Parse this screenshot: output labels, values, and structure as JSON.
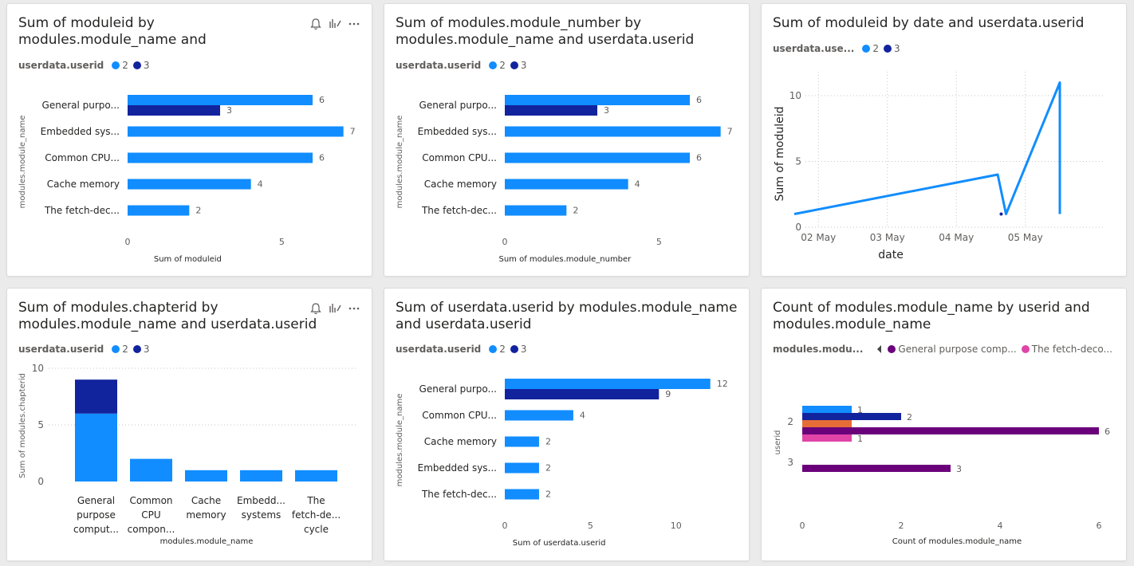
{
  "colors": {
    "series_2": "#118dff",
    "series_3": "#12239e",
    "purple": "#6b007b",
    "pink": "#e044a7",
    "orange": "#e66c37",
    "grid": "#c8c6c4",
    "axis_text": "#605e5c"
  },
  "icons": [
    "bell-icon",
    "chart-format-icon",
    "more-options-icon"
  ],
  "chart_data": [
    {
      "type": "bar",
      "orientation": "horizontal",
      "title": "Sum of moduleid by modules.module_name and userdata.userid",
      "legend": {
        "title": "userdata.userid",
        "items": [
          "2",
          "3"
        ]
      },
      "categories": [
        "General purpo...",
        "Embedded sys...",
        "Common CPU...",
        "Cache memory",
        "The fetch-dec..."
      ],
      "series": [
        {
          "name": "2",
          "values": [
            6,
            7,
            6,
            4,
            2
          ]
        },
        {
          "name": "3",
          "values": [
            3,
            null,
            null,
            null,
            null
          ]
        }
      ],
      "xlabel": "Sum of moduleid",
      "ylabel": "modules.module_name",
      "xlim": [
        0,
        7.5
      ],
      "xticks": [
        "0",
        "5"
      ]
    },
    {
      "type": "bar",
      "orientation": "horizontal",
      "title": "Sum of modules.module_number by modules.module_name and userdata.userid",
      "legend": {
        "title": "userdata.userid",
        "items": [
          "2",
          "3"
        ]
      },
      "categories": [
        "General purpo...",
        "Embedded sys...",
        "Common CPU...",
        "Cache memory",
        "The fetch-dec..."
      ],
      "series": [
        {
          "name": "2",
          "values": [
            6,
            7,
            6,
            4,
            2
          ]
        },
        {
          "name": "3",
          "values": [
            3,
            null,
            null,
            null,
            null
          ]
        }
      ],
      "xlabel": "Sum of modules.module_number",
      "ylabel": "modules.module_name",
      "xlim": [
        0,
        7.5
      ],
      "xticks": [
        "0",
        "5"
      ]
    },
    {
      "type": "line",
      "title": "Sum of moduleid by date and userdata.userid",
      "legend": {
        "title": "userdata.use...",
        "items": [
          "2",
          "3"
        ]
      },
      "xlabel": "date",
      "ylabel": "Sum of moduleid",
      "xticks": [
        "02 May",
        "03 May",
        "04 May",
        "05 May"
      ],
      "yticks": [
        "0",
        "5",
        "10"
      ],
      "ylim": [
        0,
        11.5
      ],
      "series": [
        {
          "name": "2",
          "points": [
            [
              1.65,
              1
            ],
            [
              4.6,
              4
            ],
            [
              4.72,
              1
            ],
            [
              5.5,
              11
            ],
            [
              5.5,
              1
            ]
          ]
        },
        {
          "name": "3",
          "points": [
            [
              4.65,
              1
            ]
          ]
        }
      ]
    },
    {
      "type": "bar",
      "orientation": "vertical",
      "stacked": true,
      "title": "Sum of modules.chapterid by modules.module_name and userdata.userid",
      "legend": {
        "title": "userdata.userid",
        "items": [
          "2",
          "3"
        ]
      },
      "categories": [
        [
          "General",
          "purpose",
          "comput..."
        ],
        [
          "Common",
          "CPU",
          "compon..."
        ],
        [
          "Cache",
          "memory"
        ],
        [
          "Embedd...",
          "systems"
        ],
        [
          "The",
          "fetch-de...",
          "cycle"
        ]
      ],
      "series": [
        {
          "name": "2",
          "values": [
            6,
            2,
            1,
            1,
            1
          ]
        },
        {
          "name": "3",
          "values": [
            3,
            0,
            0,
            0,
            0
          ]
        }
      ],
      "xlabel": "modules.module_name",
      "ylabel": "Sum of modules.chapterid",
      "ylim": [
        0,
        10
      ],
      "yticks": [
        "0",
        "5",
        "10"
      ]
    },
    {
      "type": "bar",
      "orientation": "horizontal",
      "title": "Sum of userdata.userid by modules.module_name and userdata.userid",
      "legend": {
        "title": "userdata.userid",
        "items": [
          "2",
          "3"
        ]
      },
      "categories": [
        "General purpo...",
        "Common CPU...",
        "Cache memory",
        "Embedded sys...",
        "The fetch-dec..."
      ],
      "series": [
        {
          "name": "2",
          "values": [
            12,
            4,
            2,
            2,
            2
          ]
        },
        {
          "name": "3",
          "values": [
            9,
            null,
            null,
            null,
            null
          ]
        }
      ],
      "xlabel": "Sum of userdata.userid",
      "ylabel": "modules.module_name",
      "xlim": [
        0,
        12.2
      ],
      "xticks": [
        "0",
        "5",
        "10"
      ]
    },
    {
      "type": "bar",
      "orientation": "horizontal",
      "title": "Count of modules.module_name by userid and modules.module_name",
      "legend": {
        "title": "modules.modu...",
        "items": [
          "General purpose comp...",
          "The fetch-deco..."
        ]
      },
      "categories": [
        "2",
        "3"
      ],
      "series": [
        {
          "name": "",
          "values": [
            1,
            null
          ]
        },
        {
          "name": "",
          "values": [
            2,
            null
          ]
        },
        {
          "name": "",
          "values": [
            null,
            null
          ]
        },
        {
          "name": "General purpose comp...",
          "values": [
            6,
            3
          ]
        },
        {
          "name": "The fetch-deco...",
          "values": [
            1,
            null
          ]
        }
      ],
      "xlabel": "Count of modules.module_name",
      "ylabel": "userid",
      "xlim": [
        0,
        6
      ],
      "xticks": [
        "0",
        "2",
        "4",
        "6"
      ]
    }
  ]
}
